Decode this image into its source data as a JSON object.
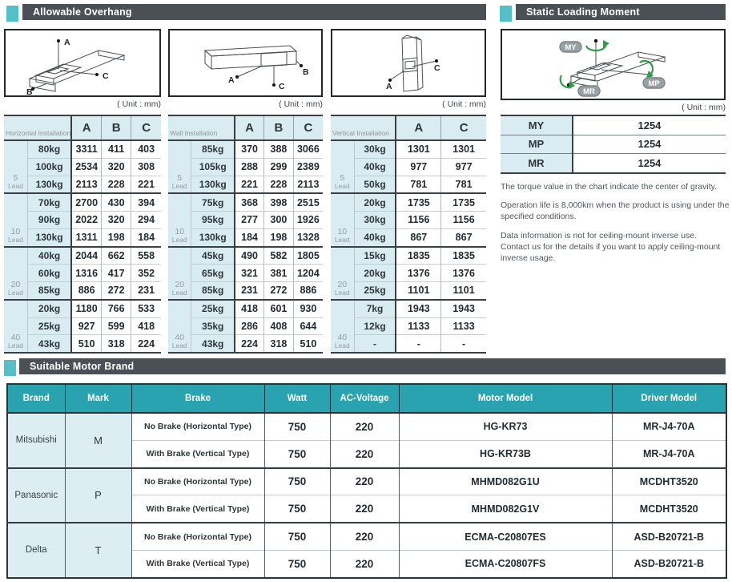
{
  "sections": {
    "overhang": {
      "title": "Allowable Overhang",
      "unit_label": "( Unit : mm)"
    },
    "static": {
      "title": "Static Loading Moment",
      "unit_label": "( Unit : mm)"
    },
    "motor": {
      "title": "Suitable Motor Brand"
    }
  },
  "lead_word": "Lead",
  "diagrams": {
    "horizontal": {
      "a": "A",
      "b": "B",
      "c": "C"
    },
    "wall": {
      "a": "A",
      "b": "B",
      "c": "C"
    },
    "vertical": {
      "a": "A",
      "c": "C"
    },
    "static_badges": {
      "my": "MY",
      "mp": "MP",
      "mr": "MR"
    }
  },
  "overhang_tables": [
    {
      "label": "Horizontal Installation",
      "columns": [
        "A",
        "B",
        "C"
      ],
      "groups": [
        {
          "lead": "5",
          "rows": [
            [
              "80kg",
              "3311",
              "411",
              "403"
            ],
            [
              "100kg",
              "2534",
              "320",
              "308"
            ],
            [
              "130kg",
              "2113",
              "228",
              "221"
            ]
          ]
        },
        {
          "lead": "10",
          "rows": [
            [
              "70kg",
              "2700",
              "430",
              "394"
            ],
            [
              "90kg",
              "2022",
              "320",
              "294"
            ],
            [
              "130kg",
              "1311",
              "198",
              "184"
            ]
          ]
        },
        {
          "lead": "20",
          "rows": [
            [
              "40kg",
              "2044",
              "662",
              "558"
            ],
            [
              "60kg",
              "1316",
              "417",
              "352"
            ],
            [
              "85kg",
              "886",
              "272",
              "231"
            ]
          ]
        },
        {
          "lead": "40",
          "rows": [
            [
              "20kg",
              "1180",
              "766",
              "533"
            ],
            [
              "25kg",
              "927",
              "599",
              "418"
            ],
            [
              "43kg",
              "510",
              "318",
              "224"
            ]
          ]
        }
      ]
    },
    {
      "label": "Wall Installation",
      "columns": [
        "A",
        "B",
        "C"
      ],
      "groups": [
        {
          "lead": "5",
          "rows": [
            [
              "85kg",
              "370",
              "388",
              "3066"
            ],
            [
              "105kg",
              "288",
              "299",
              "2389"
            ],
            [
              "130kg",
              "221",
              "228",
              "2113"
            ]
          ]
        },
        {
          "lead": "10",
          "rows": [
            [
              "75kg",
              "368",
              "398",
              "2515"
            ],
            [
              "95kg",
              "277",
              "300",
              "1926"
            ],
            [
              "130kg",
              "184",
              "198",
              "1328"
            ]
          ]
        },
        {
          "lead": "20",
          "rows": [
            [
              "45kg",
              "490",
              "582",
              "1805"
            ],
            [
              "65kg",
              "321",
              "381",
              "1204"
            ],
            [
              "85kg",
              "231",
              "272",
              "886"
            ]
          ]
        },
        {
          "lead": "40",
          "rows": [
            [
              "25kg",
              "418",
              "601",
              "930"
            ],
            [
              "35kg",
              "286",
              "408",
              "644"
            ],
            [
              "43kg",
              "224",
              "318",
              "510"
            ]
          ]
        }
      ]
    },
    {
      "label": "Vertical Installation",
      "columns": [
        "A",
        "C"
      ],
      "groups": [
        {
          "lead": "5",
          "rows": [
            [
              "30kg",
              "1301",
              "1301"
            ],
            [
              "40kg",
              "977",
              "977"
            ],
            [
              "50kg",
              "781",
              "781"
            ]
          ]
        },
        {
          "lead": "10",
          "rows": [
            [
              "20kg",
              "1735",
              "1735"
            ],
            [
              "30kg",
              "1156",
              "1156"
            ],
            [
              "40kg",
              "867",
              "867"
            ]
          ]
        },
        {
          "lead": "20",
          "rows": [
            [
              "15kg",
              "1835",
              "1835"
            ],
            [
              "20kg",
              "1376",
              "1376"
            ],
            [
              "25kg",
              "1101",
              "1101"
            ]
          ]
        },
        {
          "lead": "40",
          "rows": [
            [
              "7kg",
              "1943",
              "1943"
            ],
            [
              "12kg",
              "1133",
              "1133"
            ],
            [
              "-",
              "-",
              "-"
            ]
          ]
        }
      ]
    }
  ],
  "static_loading": {
    "rows": [
      [
        "MY",
        "1254"
      ],
      [
        "MP",
        "1254"
      ],
      [
        "MR",
        "1254"
      ]
    ],
    "notes": [
      "The torque value in the chart indicate the center of gravity.",
      "Operation life is 8,000km when the product is using under the specified conditions.",
      "Data information is not for ceiling-mount inverse use.\nContact us for the details if you want to apply ceiling-mount inverse usage."
    ]
  },
  "motor_table": {
    "headers": [
      "Brand",
      "Mark",
      "Brake",
      "Watt",
      "AC-Voltage",
      "Motor Model",
      "Driver Model"
    ],
    "brands": [
      {
        "brand": "Mitsubishi",
        "mark": "M",
        "rows": [
          {
            "brake": "No Brake (Horizontal Type)",
            "watt": "750",
            "voltage": "220",
            "motor": "HG-KR73",
            "driver": "MR-J4-70A"
          },
          {
            "brake": "With Brake (Vertical Type)",
            "watt": "750",
            "voltage": "220",
            "motor": "HG-KR73B",
            "driver": "MR-J4-70A"
          }
        ]
      },
      {
        "brand": "Panasonic",
        "mark": "P",
        "rows": [
          {
            "brake": "No Brake (Horizontal Type)",
            "watt": "750",
            "voltage": "220",
            "motor": "MHMD082G1U",
            "driver": "MCDHT3520"
          },
          {
            "brake": "With Brake (Vertical Type)",
            "watt": "750",
            "voltage": "220",
            "motor": "MHMD082G1V",
            "driver": "MCDHT3520"
          }
        ]
      },
      {
        "brand": "Delta",
        "mark": "T",
        "rows": [
          {
            "brake": "No Brake (Horizontal Type)",
            "watt": "750",
            "voltage": "220",
            "motor": "ECMA-C20807ES",
            "driver": "ASD-B20721-B"
          },
          {
            "brake": "With Brake (Vertical Type)",
            "watt": "750",
            "voltage": "220",
            "motor": "ECMA-C20807FS",
            "driver": "ASD-B20721-B"
          }
        ]
      }
    ]
  },
  "colors": {
    "accent_teal_square": "#53bfc8",
    "table_header_teal": "#29a3b0",
    "section_bar_gray": "#4a5055",
    "cell_light_blue": "#d9ecf1",
    "rotation_arrow_green": "#2f9e45"
  }
}
